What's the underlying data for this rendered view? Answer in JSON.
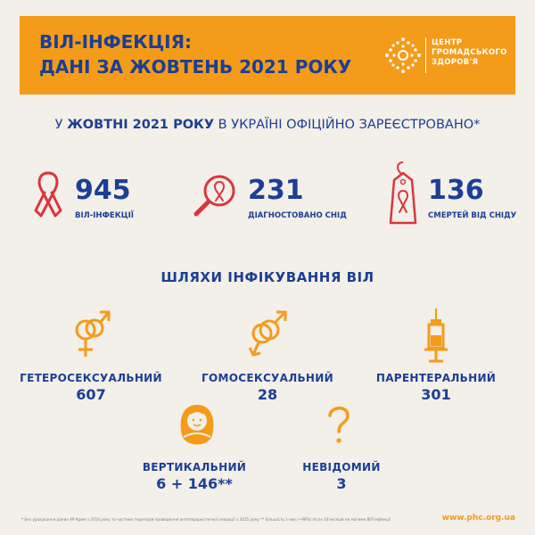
{
  "header": {
    "title_line1": "ВІЛ-ІНФЕКЦІЯ:",
    "title_line2": "ДАНІ ЗА ЖОВТЕНЬ 2021 РОКУ",
    "logo_line1": "ЦЕНТР",
    "logo_line2": "ГРОМАДСЬКОГО",
    "logo_line3": "ЗДОРОВ'Я",
    "logo_icon": "public-health-center-logo"
  },
  "subtitle": {
    "prefix": "У ",
    "bold": "ЖОВТНІ 2021 РОКУ",
    "suffix": " В УКРАЇНІ ОФІЦІЙНО ЗАРЕЄСТРОВАНО*"
  },
  "stats": [
    {
      "value": "945",
      "label": "ВІЛ-ІНФЕКЦІЇ",
      "icon": "ribbon-icon"
    },
    {
      "value": "231",
      "label": "ДІАГНОСТОВАНО СНІД",
      "icon": "magnifier-ribbon-icon"
    },
    {
      "value": "136",
      "label": "СМЕРТЕЙ ВІД СНІДУ",
      "icon": "tag-ribbon-icon"
    }
  ],
  "section_title": "ШЛЯХИ ІНФІКУВАННЯ ВІЛ",
  "routes": [
    {
      "label": "ГЕТЕРОСЕКСУАЛЬНИЙ",
      "value": "607",
      "icon": "male-female-icon"
    },
    {
      "label": "ГОМОСЕКСУАЛЬНИЙ",
      "value": "28",
      "icon": "male-male-icon"
    },
    {
      "label": "ПАРЕНТЕРАЛЬНИЙ",
      "value": "301",
      "icon": "syringe-icon"
    },
    {
      "label": "ВЕРТИКАЛЬНИЙ",
      "value": "6 + 146**",
      "icon": "baby-icon"
    },
    {
      "label": "НЕВІДОМИЙ",
      "value": "3",
      "icon": "question-icon"
    }
  ],
  "footnote": "* Без урахування даних АР Крим з 2014 року та частини територій проведення антитерористичної операції з 2015 року      ** Більшість з них (~98%) після 18 місяців не матиме ВІЛ-інфекції",
  "website": "www.phc.org.ua",
  "colors": {
    "orange": "#f49b1a",
    "navy": "#1b3f94",
    "red": "#d9363e",
    "background": "#f3efe9"
  }
}
